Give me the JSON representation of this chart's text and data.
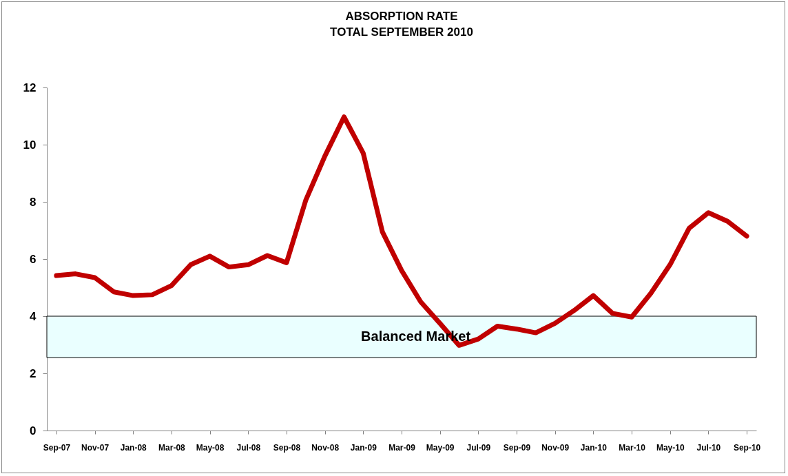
{
  "chart_data": {
    "type": "line",
    "title": "ABSORPTION RATE",
    "subtitle": "TOTAL SEPTEMBER 2010",
    "categories": [
      "Sep-07",
      null,
      "Nov-07",
      null,
      "Jan-08",
      null,
      "Mar-08",
      null,
      "May-08",
      null,
      "Jul-08",
      null,
      "Sep-08",
      null,
      "Nov-08",
      null,
      "Jan-09",
      null,
      "Mar-09",
      null,
      "May-09",
      null,
      "Jul-09",
      null,
      "Sep-09",
      null,
      "Nov-09",
      null,
      "Jan-10",
      null,
      "Mar-10",
      null,
      "May-10",
      null,
      "Jul-10",
      null,
      "Sep-10"
    ],
    "series": [
      {
        "color": "#c00000",
        "values": [
          5.42,
          5.48,
          5.35,
          4.85,
          4.72,
          4.75,
          5.07,
          5.8,
          6.1,
          5.72,
          5.8,
          6.12,
          5.87,
          8.05,
          9.6,
          10.97,
          9.7,
          6.95,
          5.6,
          4.5,
          3.75,
          2.98,
          3.2,
          3.65,
          3.55,
          3.42,
          3.75,
          4.2,
          4.72,
          4.1,
          3.97,
          4.8,
          5.8,
          7.08,
          7.62,
          7.32,
          6.8
        ]
      }
    ],
    "ylim": [
      0,
      12
    ],
    "yticks": [
      0,
      2,
      4,
      6,
      8,
      10,
      12
    ],
    "grid": false,
    "marker": "none",
    "line_style": "solid",
    "bands": [
      {
        "axis": "y",
        "from": 2.55,
        "to": 4,
        "label": "Balanced Market",
        "color": "#eaffff"
      }
    ]
  }
}
